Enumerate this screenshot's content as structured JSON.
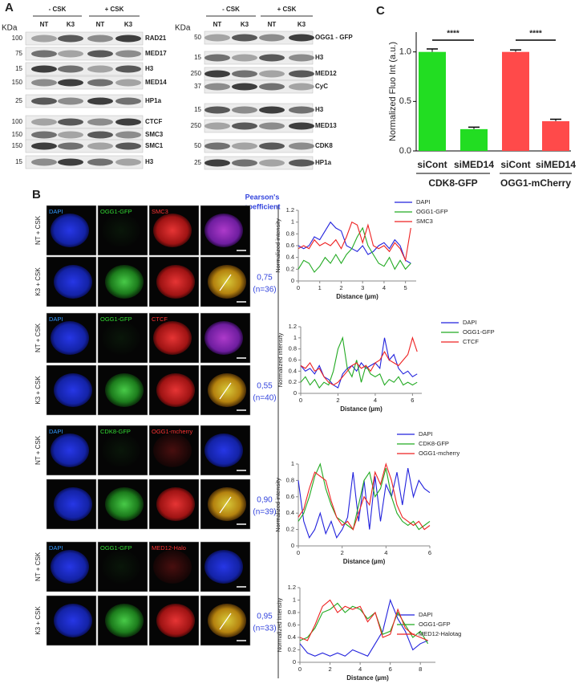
{
  "panel_a": {
    "label": "A",
    "left_blot": {
      "kda": "KDa",
      "groups": [
        "- CSK",
        "+ CSK"
      ],
      "lanes": [
        "NT",
        "K3",
        "NT",
        "K3"
      ],
      "rows": [
        {
          "marker": "100",
          "protein": "RAD21"
        },
        {
          "marker": "75",
          "protein": "MED17"
        },
        {
          "marker": "15",
          "protein": "H3"
        },
        {
          "marker": "150",
          "protein": "MED14"
        },
        {
          "marker": "25",
          "protein": "HP1a"
        },
        {
          "marker": "100",
          "protein": "CTCF"
        },
        {
          "marker": "150",
          "protein": "SMC3"
        },
        {
          "marker": "150",
          "protein": "SMC1"
        },
        {
          "marker": "15",
          "protein": "H3"
        }
      ]
    },
    "right_blot": {
      "kda": "KDa",
      "groups": [
        "- CSK",
        "+ CSK"
      ],
      "lanes": [
        "NT",
        "K3",
        "NT",
        "K3"
      ],
      "rows": [
        {
          "marker": "50",
          "protein": "OGG1 - GFP"
        },
        {
          "marker": "15",
          "protein": "H3"
        },
        {
          "marker": "250",
          "protein": "MED12"
        },
        {
          "marker": "37",
          "protein": "CyC"
        },
        {
          "marker": "15",
          "protein": "H3"
        },
        {
          "marker": "250",
          "protein": "MED13"
        },
        {
          "marker": "50",
          "protein": "CDK8"
        },
        {
          "marker": "25",
          "protein": "HP1a"
        }
      ]
    }
  },
  "panel_b": {
    "label": "B",
    "pearson_header": [
      "Pearson's",
      "coefficient"
    ],
    "groups": [
      {
        "channels": [
          "DAPI",
          "OGG1-GFP",
          "SMC3"
        ],
        "row_labels": [
          "NT + CSK",
          "K3 + CSK"
        ],
        "pearson": "0,75",
        "n": "(n=36)"
      },
      {
        "channels": [
          "DAPI",
          "OGG1-GFP",
          "CTCF"
        ],
        "row_labels": [
          "NT + CSK",
          "K3 + CSK"
        ],
        "pearson": "0,55",
        "n": "(n=40)"
      },
      {
        "channels": [
          "DAPI",
          "CDK8-GFP",
          "OGG1-mcherry"
        ],
        "row_labels": [
          "NT + CSK"
        ],
        "pearson": "0,90",
        "n": "(n=39)"
      },
      {
        "channels": [
          "DAPI",
          "OGG1-GFP",
          "MED12-Halo"
        ],
        "row_labels": [
          "NT + CSK",
          "K3 + CSK"
        ],
        "pearson": "0,95",
        "n": "(n=33)"
      }
    ]
  },
  "panel_c": {
    "label": "C"
  },
  "chart_data": [
    {
      "type": "bar",
      "y_label": "Normalized Fluo Int (a.u.)",
      "categories": [
        "siCont",
        "siMED14",
        "siCont",
        "siMED14"
      ],
      "groups": [
        "CDK8-GFP",
        "OGG1-mCherry"
      ],
      "values": [
        1.0,
        0.22,
        1.0,
        0.3
      ],
      "errors": [
        0.03,
        0.02,
        0.02,
        0.02
      ],
      "colors": [
        "#22dd22",
        "#22dd22",
        "#ff4a4a",
        "#ff4a4a"
      ],
      "annotations": [
        "****",
        "****"
      ],
      "ylim": [
        0,
        1.2
      ],
      "yticks": [
        {
          "value": 0,
          "label": "0.0"
        },
        {
          "value": 0.5,
          "label": "0.5"
        },
        {
          "value": 1,
          "label": "1.0"
        }
      ]
    },
    {
      "type": "line",
      "y_label": "Normalized intensity",
      "x_label": "Distance (µm)",
      "xlim": [
        0,
        5.5
      ],
      "xticks": [
        0,
        1,
        2,
        3,
        4,
        5
      ],
      "ylim": [
        0,
        1.2
      ],
      "yticks": [
        0,
        0.2,
        0.4,
        0.6,
        0.8,
        1,
        1.2
      ],
      "x": [
        0,
        0.25,
        0.5,
        0.75,
        1,
        1.25,
        1.5,
        1.75,
        2,
        2.25,
        2.5,
        2.75,
        3,
        3.25,
        3.5,
        3.75,
        4,
        4.25,
        4.5,
        4.75,
        5,
        5.25
      ],
      "series": [
        {
          "name": "DAPI",
          "color": "#2222dd",
          "values": [
            0.6,
            0.55,
            0.6,
            0.75,
            0.7,
            0.85,
            1.0,
            0.9,
            0.85,
            0.6,
            0.55,
            0.5,
            0.6,
            0.45,
            0.5,
            0.6,
            0.65,
            0.55,
            0.7,
            0.6,
            0.35,
            0.3
          ]
        },
        {
          "name": "OGG1-GFP",
          "color": "#22aa22",
          "values": [
            0.2,
            0.35,
            0.3,
            0.15,
            0.25,
            0.4,
            0.3,
            0.45,
            0.3,
            0.45,
            0.55,
            0.75,
            0.9,
            0.6,
            0.45,
            0.3,
            0.25,
            0.4,
            0.2,
            0.35,
            0.2,
            0.3
          ]
        },
        {
          "name": "SMC3",
          "color": "#ee2222",
          "values": [
            0.55,
            0.6,
            0.55,
            0.7,
            0.6,
            0.65,
            0.6,
            0.7,
            0.55,
            0.75,
            1.0,
            0.95,
            0.65,
            0.95,
            0.6,
            0.55,
            0.6,
            0.5,
            0.65,
            0.55,
            0.35,
            0.9
          ]
        }
      ]
    },
    {
      "type": "line",
      "y_label": "Normalized intensity",
      "x_label": "Distance (µm)",
      "xlim": [
        0,
        6.5
      ],
      "xticks": [
        0,
        2,
        4,
        6
      ],
      "ylim": [
        0,
        1.2
      ],
      "yticks": [
        0,
        0.2,
        0.4,
        0.6,
        0.8,
        1,
        1.2
      ],
      "x": [
        0,
        0.25,
        0.5,
        0.75,
        1,
        1.25,
        1.5,
        1.75,
        2,
        2.25,
        2.5,
        2.75,
        3,
        3.25,
        3.5,
        3.75,
        4,
        4.25,
        4.5,
        4.75,
        5,
        5.25,
        5.5,
        5.75,
        6,
        6.25
      ],
      "series": [
        {
          "name": "DAPI",
          "color": "#2222dd",
          "values": [
            0.5,
            0.4,
            0.45,
            0.35,
            0.5,
            0.3,
            0.25,
            0.15,
            0.1,
            0.35,
            0.45,
            0.5,
            0.4,
            0.55,
            0.45,
            0.5,
            0.55,
            0.45,
            1.0,
            0.6,
            0.7,
            0.45,
            0.35,
            0.4,
            0.3,
            0.35
          ]
        },
        {
          "name": "OGG1-GFP",
          "color": "#22aa22",
          "values": [
            0.2,
            0.3,
            0.15,
            0.25,
            0.1,
            0.2,
            0.15,
            0.4,
            0.8,
            1.0,
            0.45,
            0.3,
            0.6,
            0.2,
            0.5,
            0.35,
            0.3,
            0.35,
            0.15,
            0.25,
            0.2,
            0.3,
            0.15,
            0.2,
            0.15,
            0.2
          ]
        },
        {
          "name": "CTCF",
          "color": "#ee2222",
          "values": [
            0.5,
            0.45,
            0.55,
            0.4,
            0.45,
            0.3,
            0.2,
            0.15,
            0.2,
            0.3,
            0.4,
            0.5,
            0.55,
            0.45,
            0.5,
            0.4,
            0.55,
            0.6,
            0.75,
            0.6,
            0.55,
            0.5,
            0.6,
            0.7,
            1.0,
            0.75
          ]
        }
      ]
    },
    {
      "type": "line",
      "y_label": "Normalized intensity",
      "x_label": "Distance (µm)",
      "xlim": [
        0,
        6
      ],
      "xticks": [
        0,
        2,
        4,
        6
      ],
      "ylim": [
        0,
        1
      ],
      "yticks": [
        0,
        0.2,
        0.4,
        0.6,
        0.8,
        1
      ],
      "x": [
        0,
        0.25,
        0.5,
        0.75,
        1,
        1.25,
        1.5,
        1.75,
        2,
        2.25,
        2.5,
        2.75,
        3,
        3.25,
        3.5,
        3.75,
        4,
        4.25,
        4.5,
        4.75,
        5,
        5.25,
        5.5,
        5.75,
        6
      ],
      "series": [
        {
          "name": "DAPI",
          "color": "#2222dd",
          "values": [
            0.8,
            0.3,
            0.1,
            0.2,
            0.4,
            0.15,
            0.3,
            0.1,
            0.2,
            0.35,
            0.9,
            0.3,
            0.8,
            0.2,
            0.85,
            0.3,
            0.75,
            0.6,
            0.9,
            0.5,
            0.95,
            0.6,
            0.8,
            0.7,
            0.65
          ]
        },
        {
          "name": "CDK8-GFP",
          "color": "#22aa22",
          "values": [
            0.3,
            0.4,
            0.6,
            0.85,
            1.0,
            0.7,
            0.5,
            0.35,
            0.3,
            0.25,
            0.2,
            0.5,
            0.8,
            0.9,
            0.6,
            0.7,
            0.95,
            0.6,
            0.4,
            0.3,
            0.25,
            0.3,
            0.2,
            0.25,
            0.3
          ]
        },
        {
          "name": "OGG1-mcherry",
          "color": "#ee2222",
          "values": [
            0.35,
            0.45,
            0.7,
            0.9,
            0.85,
            0.8,
            0.55,
            0.35,
            0.25,
            0.3,
            0.2,
            0.4,
            0.6,
            0.5,
            0.9,
            0.75,
            1.0,
            0.8,
            0.5,
            0.35,
            0.3,
            0.25,
            0.3,
            0.2,
            0.25
          ]
        }
      ]
    },
    {
      "type": "line",
      "y_label": "Normalized intensity",
      "x_label": "Distance (µm)",
      "xlim": [
        0,
        9
      ],
      "xticks": [
        0,
        2,
        4,
        6,
        8
      ],
      "ylim": [
        0,
        1.2
      ],
      "yticks": [
        0,
        0.2,
        0.4,
        0.6,
        0.8,
        1,
        1.2
      ],
      "x": [
        0,
        0.5,
        1,
        1.5,
        2,
        2.5,
        3,
        3.5,
        4,
        4.5,
        5,
        5.5,
        6,
        6.5,
        7,
        7.5,
        8,
        8.5
      ],
      "series": [
        {
          "name": "DAPI",
          "color": "#2222dd",
          "values": [
            0.3,
            0.15,
            0.1,
            0.15,
            0.1,
            0.15,
            0.1,
            0.2,
            0.15,
            0.1,
            0.3,
            0.5,
            1.0,
            0.7,
            0.5,
            0.2,
            0.3,
            0.35
          ]
        },
        {
          "name": "OGG1-GFP",
          "color": "#22aa22",
          "values": [
            0.35,
            0.4,
            0.55,
            0.8,
            0.85,
            0.95,
            0.8,
            0.9,
            0.85,
            0.7,
            0.8,
            0.45,
            0.5,
            0.8,
            0.6,
            0.4,
            0.5,
            0.3
          ]
        },
        {
          "name": "MED12-Halotag",
          "color": "#ee2222",
          "values": [
            0.4,
            0.35,
            0.6,
            0.9,
            1.0,
            0.8,
            0.9,
            0.85,
            0.9,
            0.65,
            0.8,
            0.4,
            0.45,
            0.85,
            0.55,
            0.45,
            0.4,
            0.35
          ]
        }
      ]
    }
  ]
}
